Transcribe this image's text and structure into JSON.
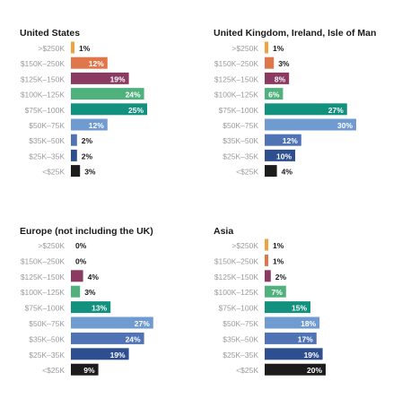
{
  "chart_data": [
    {
      "type": "bar",
      "orientation": "horizontal",
      "title": "United States",
      "categories": [
        ">$250K",
        "$150K–250K",
        "$125K–150K",
        "$100K–125K",
        "$75K–100K",
        "$50K–75K",
        "$35K–50K",
        "$25K–35K",
        "<$25K"
      ],
      "values": [
        1,
        12,
        19,
        24,
        25,
        12,
        2,
        2,
        3
      ],
      "value_labels": [
        "1%",
        "12%",
        "19%",
        "24%",
        "25%",
        "12%",
        "2%",
        "2%",
        "3%"
      ]
    },
    {
      "type": "bar",
      "orientation": "horizontal",
      "title": "United Kingdom, Ireland, Isle of Man",
      "categories": [
        ">$250K",
        "$150K–250K",
        "$125K–150K",
        "$100K–125K",
        "$75K–100K",
        "$50K–75K",
        "$35K–50K",
        "$25K–35K",
        "<$25K"
      ],
      "values": [
        1,
        3,
        8,
        6,
        27,
        30,
        12,
        10,
        4
      ],
      "value_labels": [
        "1%",
        "3%",
        "8%",
        "6%",
        "27%",
        "30%",
        "12%",
        "10%",
        "4%"
      ]
    },
    {
      "type": "bar",
      "orientation": "horizontal",
      "title": "Europe (not including the UK)",
      "categories": [
        ">$250K",
        "$150K–250K",
        "$125K–150K",
        "$100K–125K",
        "$75K–100K",
        "$50K–75K",
        "$35K–50K",
        "$25K–35K",
        "<$25K"
      ],
      "values": [
        0,
        0,
        4,
        3,
        13,
        27,
        24,
        19,
        9
      ],
      "value_labels": [
        "0%",
        "0%",
        "4%",
        "3%",
        "13%",
        "27%",
        "24%",
        "19%",
        "9%"
      ]
    },
    {
      "type": "bar",
      "orientation": "horizontal",
      "title": "Asia",
      "categories": [
        ">$250K",
        "$150K–250K",
        "$125K–150K",
        "$100K–125K",
        "$75K–100K",
        "$50K–75K",
        "$35K–50K",
        "$25K–35K",
        "<$25K"
      ],
      "values": [
        1,
        1,
        2,
        7,
        15,
        18,
        17,
        19,
        20
      ],
      "value_labels": [
        "1%",
        "1%",
        "2%",
        "7%",
        "15%",
        "18%",
        "17%",
        "19%",
        "20%"
      ]
    }
  ],
  "colors": {
    "category_colors": [
      "#f2a23c",
      "#e0774a",
      "#8b3a62",
      "#4fb27c",
      "#13917f",
      "#6f9bd1",
      "#4f73b5",
      "#2e4f8f",
      "#1c1c1c"
    ],
    "label_inside": "#ffffff",
    "label_outside": "#1a1a1a",
    "category_label": "#9a9aa0",
    "title": "#1a1a1a"
  }
}
